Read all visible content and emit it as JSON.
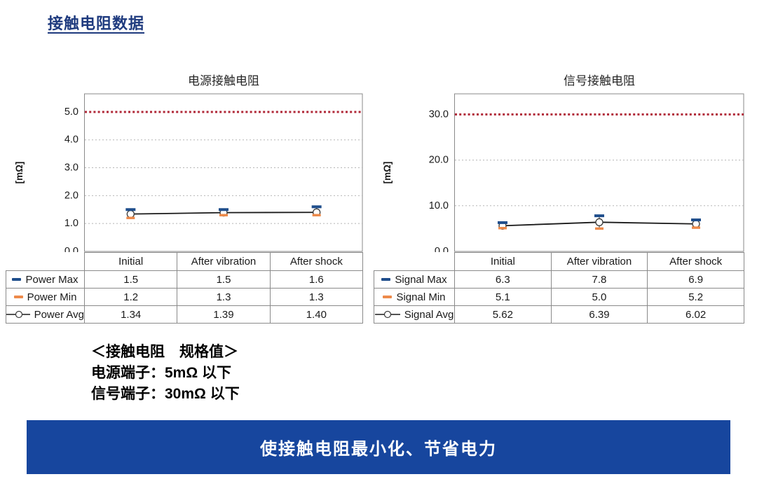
{
  "page": {
    "title": "接触电阻数据",
    "spec_note": {
      "heading": "＜接触电阻　规格值＞",
      "line1": "电源端子：5mΩ 以下",
      "line2": "信号端子：30mΩ 以下"
    },
    "banner_text": "使接触电阻最小化、节省电力"
  },
  "colors": {
    "title_blue": "#1e3a7e",
    "banner_blue": "#17469e",
    "max_blue": "#1f4e8c",
    "min_orange": "#ed8a4a",
    "avg_line": "#1a1a1a",
    "spec_red": "#b02838",
    "grid_gray": "#b5b5b5",
    "border_gray": "#8a8a8a"
  },
  "chart_data": [
    {
      "type": "line",
      "title": "电源接触电阻",
      "ylabel": "[mΩ]",
      "categories": [
        "Initial",
        "After vibration",
        "After shock"
      ],
      "yticks": [
        0,
        1,
        2,
        3,
        4,
        5
      ],
      "ylim": [
        0,
        5.65
      ],
      "spec_limit": 5.0,
      "grid": true,
      "legend_position": "table-left-column",
      "series": [
        {
          "name": "Power Max",
          "role": "max",
          "values": [
            1.5,
            1.5,
            1.6
          ],
          "labels": [
            "1.5",
            "1.5",
            "1.6"
          ]
        },
        {
          "name": "Power Min",
          "role": "min",
          "values": [
            1.2,
            1.3,
            1.3
          ],
          "labels": [
            "1.2",
            "1.3",
            "1.3"
          ]
        },
        {
          "name": "Power Avg",
          "role": "avg",
          "values": [
            1.34,
            1.39,
            1.4
          ],
          "labels": [
            "1.34",
            "1.39",
            "1.40"
          ]
        }
      ]
    },
    {
      "type": "line",
      "title": "信号接触电阻",
      "ylabel": "[mΩ]",
      "categories": [
        "Initial",
        "After vibration",
        "After shock"
      ],
      "yticks": [
        0,
        10,
        20,
        30
      ],
      "ylim": [
        0,
        34.5
      ],
      "spec_limit": 30.0,
      "grid": true,
      "legend_position": "table-left-column",
      "series": [
        {
          "name": "Signal Max",
          "role": "max",
          "values": [
            6.3,
            7.8,
            6.9
          ],
          "labels": [
            "6.3",
            "7.8",
            "6.9"
          ]
        },
        {
          "name": "Signal Min",
          "role": "min",
          "values": [
            5.1,
            5.0,
            5.2
          ],
          "labels": [
            "5.1",
            "5.0",
            "5.2"
          ]
        },
        {
          "name": "Signal Avg",
          "role": "avg",
          "values": [
            5.62,
            6.39,
            6.02
          ],
          "labels": [
            "5.62",
            "6.39",
            "6.02"
          ]
        }
      ]
    }
  ]
}
